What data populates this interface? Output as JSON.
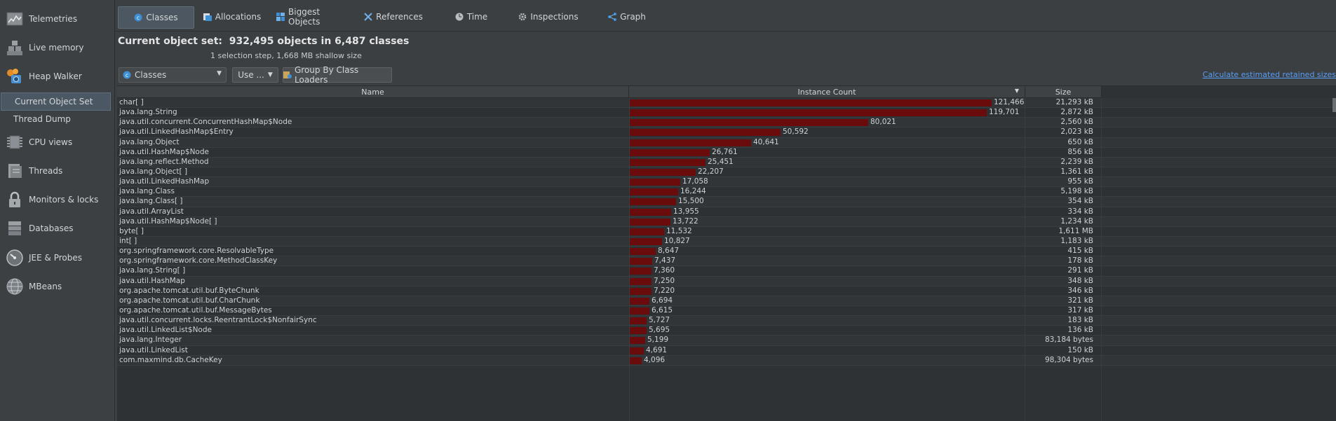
{
  "sidebar": {
    "items": [
      {
        "label": "Telemetries",
        "icon": "telemetries-icon"
      },
      {
        "label": "Live memory",
        "icon": "live-memory-icon"
      },
      {
        "label": "Heap Walker",
        "icon": "heap-walker-icon"
      },
      {
        "label": "CPU views",
        "icon": "cpu-icon"
      },
      {
        "label": "Threads",
        "icon": "threads-icon"
      },
      {
        "label": "Monitors & locks",
        "icon": "lock-icon"
      },
      {
        "label": "Databases",
        "icon": "database-icon"
      },
      {
        "label": "JEE & Probes",
        "icon": "gauge-icon"
      },
      {
        "label": "MBeans",
        "icon": "globe-icon"
      }
    ],
    "sub_items": [
      {
        "label": "Current Object Set",
        "selected": true
      },
      {
        "label": "Thread Dump",
        "selected": false
      }
    ]
  },
  "tabs": [
    {
      "label": "Classes",
      "icon": "class-c-icon",
      "active": true
    },
    {
      "label": "Allocations",
      "icon": "allocations-icon",
      "active": false
    },
    {
      "label": "Biggest Objects",
      "icon": "biggest-objects-icon",
      "active": false
    },
    {
      "label": "References",
      "icon": "references-icon",
      "active": false
    },
    {
      "label": "Time",
      "icon": "clock-icon",
      "active": false
    },
    {
      "label": "Inspections",
      "icon": "gear-icon",
      "active": false
    },
    {
      "label": "Graph",
      "icon": "graph-icon",
      "active": false
    }
  ],
  "header": {
    "title": "Current object set:  932,495 objects in 6,487 classes",
    "subtitle": "1 selection step, 1,668 MB shallow size"
  },
  "controls": {
    "view_select": "Classes",
    "use_button": "Use ...",
    "group_button": "Group By Class Loaders",
    "retained_link": "Calculate estimated retained sizes"
  },
  "table": {
    "columns": [
      "Name",
      "Instance Count",
      "Size"
    ],
    "max_count": 121466,
    "rows": [
      {
        "name": "char[ ]",
        "count": "121,466",
        "count_value": 121466,
        "size": "21,293 kB"
      },
      {
        "name": "java.lang.String",
        "count": "119,701",
        "count_value": 119701,
        "size": "2,872 kB"
      },
      {
        "name": "java.util.concurrent.ConcurrentHashMap$Node",
        "count": "80,021",
        "count_value": 80021,
        "size": "2,560 kB"
      },
      {
        "name": "java.util.LinkedHashMap$Entry",
        "count": "50,592",
        "count_value": 50592,
        "size": "2,023 kB"
      },
      {
        "name": "java.lang.Object",
        "count": "40,641",
        "count_value": 40641,
        "size": "650 kB"
      },
      {
        "name": "java.util.HashMap$Node",
        "count": "26,761",
        "count_value": 26761,
        "size": "856 kB"
      },
      {
        "name": "java.lang.reflect.Method",
        "count": "25,451",
        "count_value": 25451,
        "size": "2,239 kB"
      },
      {
        "name": "java.lang.Object[ ]",
        "count": "22,207",
        "count_value": 22207,
        "size": "1,361 kB"
      },
      {
        "name": "java.util.LinkedHashMap",
        "count": "17,058",
        "count_value": 17058,
        "size": "955 kB"
      },
      {
        "name": "java.lang.Class",
        "count": "16,244",
        "count_value": 16244,
        "size": "5,198 kB"
      },
      {
        "name": "java.lang.Class[ ]",
        "count": "15,500",
        "count_value": 15500,
        "size": "354 kB"
      },
      {
        "name": "java.util.ArrayList",
        "count": "13,955",
        "count_value": 13955,
        "size": "334 kB"
      },
      {
        "name": "java.util.HashMap$Node[ ]",
        "count": "13,722",
        "count_value": 13722,
        "size": "1,234 kB"
      },
      {
        "name": "byte[ ]",
        "count": "11,532",
        "count_value": 11532,
        "size": "1,611 MB"
      },
      {
        "name": "int[ ]",
        "count": "10,827",
        "count_value": 10827,
        "size": "1,183 kB"
      },
      {
        "name": "org.springframework.core.ResolvableType",
        "count": "8,647",
        "count_value": 8647,
        "size": "415 kB"
      },
      {
        "name": "org.springframework.core.MethodClassKey",
        "count": "7,437",
        "count_value": 7437,
        "size": "178 kB"
      },
      {
        "name": "java.lang.String[ ]",
        "count": "7,360",
        "count_value": 7360,
        "size": "291 kB"
      },
      {
        "name": "java.util.HashMap",
        "count": "7,250",
        "count_value": 7250,
        "size": "348 kB"
      },
      {
        "name": "org.apache.tomcat.util.buf.ByteChunk",
        "count": "7,220",
        "count_value": 7220,
        "size": "346 kB"
      },
      {
        "name": "org.apache.tomcat.util.buf.CharChunk",
        "count": "6,694",
        "count_value": 6694,
        "size": "321 kB"
      },
      {
        "name": "org.apache.tomcat.util.buf.MessageBytes",
        "count": "6,615",
        "count_value": 6615,
        "size": "317 kB"
      },
      {
        "name": "java.util.concurrent.locks.ReentrantLock$NonfairSync",
        "count": "5,727",
        "count_value": 5727,
        "size": "183 kB"
      },
      {
        "name": "java.util.LinkedList$Node",
        "count": "5,695",
        "count_value": 5695,
        "size": "136 kB"
      },
      {
        "name": "java.lang.Integer",
        "count": "5,199",
        "count_value": 5199,
        "size": "83,184 bytes"
      },
      {
        "name": "java.util.LinkedList",
        "count": "4,691",
        "count_value": 4691,
        "size": "150 kB"
      },
      {
        "name": "com.maxmind.db.CacheKey",
        "count": "4,096",
        "count_value": 4096,
        "size": "98,304 bytes"
      }
    ]
  }
}
